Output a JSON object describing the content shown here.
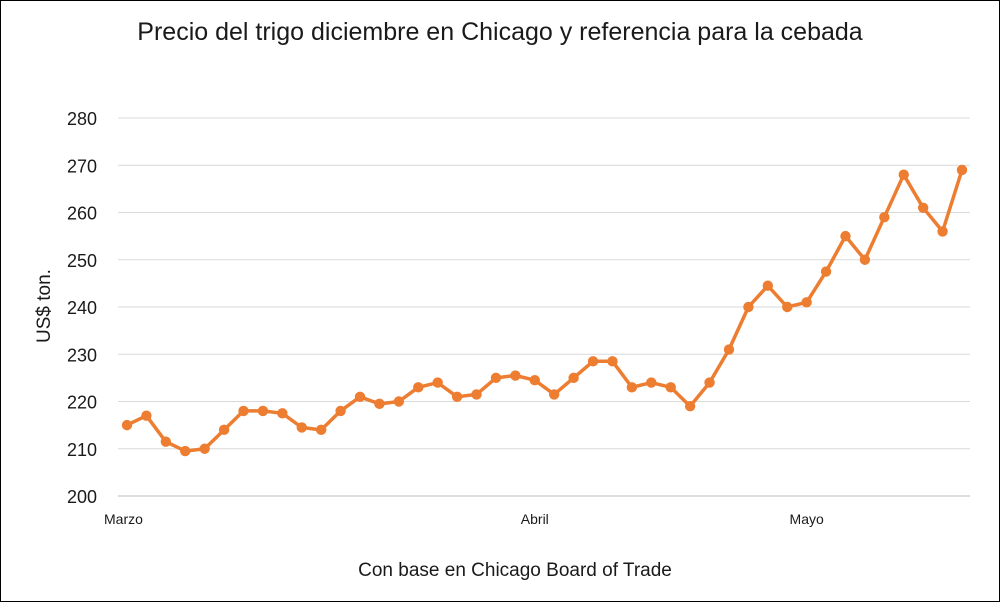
{
  "chart_data": {
    "type": "line",
    "title": "Precio del trigo diciembre en Chicago y referencia para la cebada",
    "ylabel": "US$ ton.",
    "xlabel": "Con base en Chicago Board of Trade",
    "ylim": [
      200,
      280
    ],
    "yticks": [
      200,
      210,
      220,
      230,
      240,
      250,
      260,
      270,
      280
    ],
    "x_labels": [
      {
        "index": 0,
        "label": "Marzo"
      },
      {
        "index": 21,
        "label": "Abril"
      },
      {
        "index": 35,
        "label": "Mayo"
      }
    ],
    "grid": true,
    "color": "#ED7D31",
    "series": [
      {
        "values": [
          215,
          217,
          211.5,
          209.5,
          210,
          214,
          218,
          218,
          217.5,
          214.5,
          214,
          218,
          221,
          219.5,
          220,
          223,
          224,
          221,
          221.5,
          225,
          225.5,
          224.5,
          221.5,
          225,
          228.5,
          228.5,
          223,
          224,
          223,
          219,
          224,
          231,
          240,
          244.5,
          240,
          241,
          247.5,
          255,
          250,
          259,
          268,
          261,
          256,
          269
        ]
      }
    ]
  }
}
